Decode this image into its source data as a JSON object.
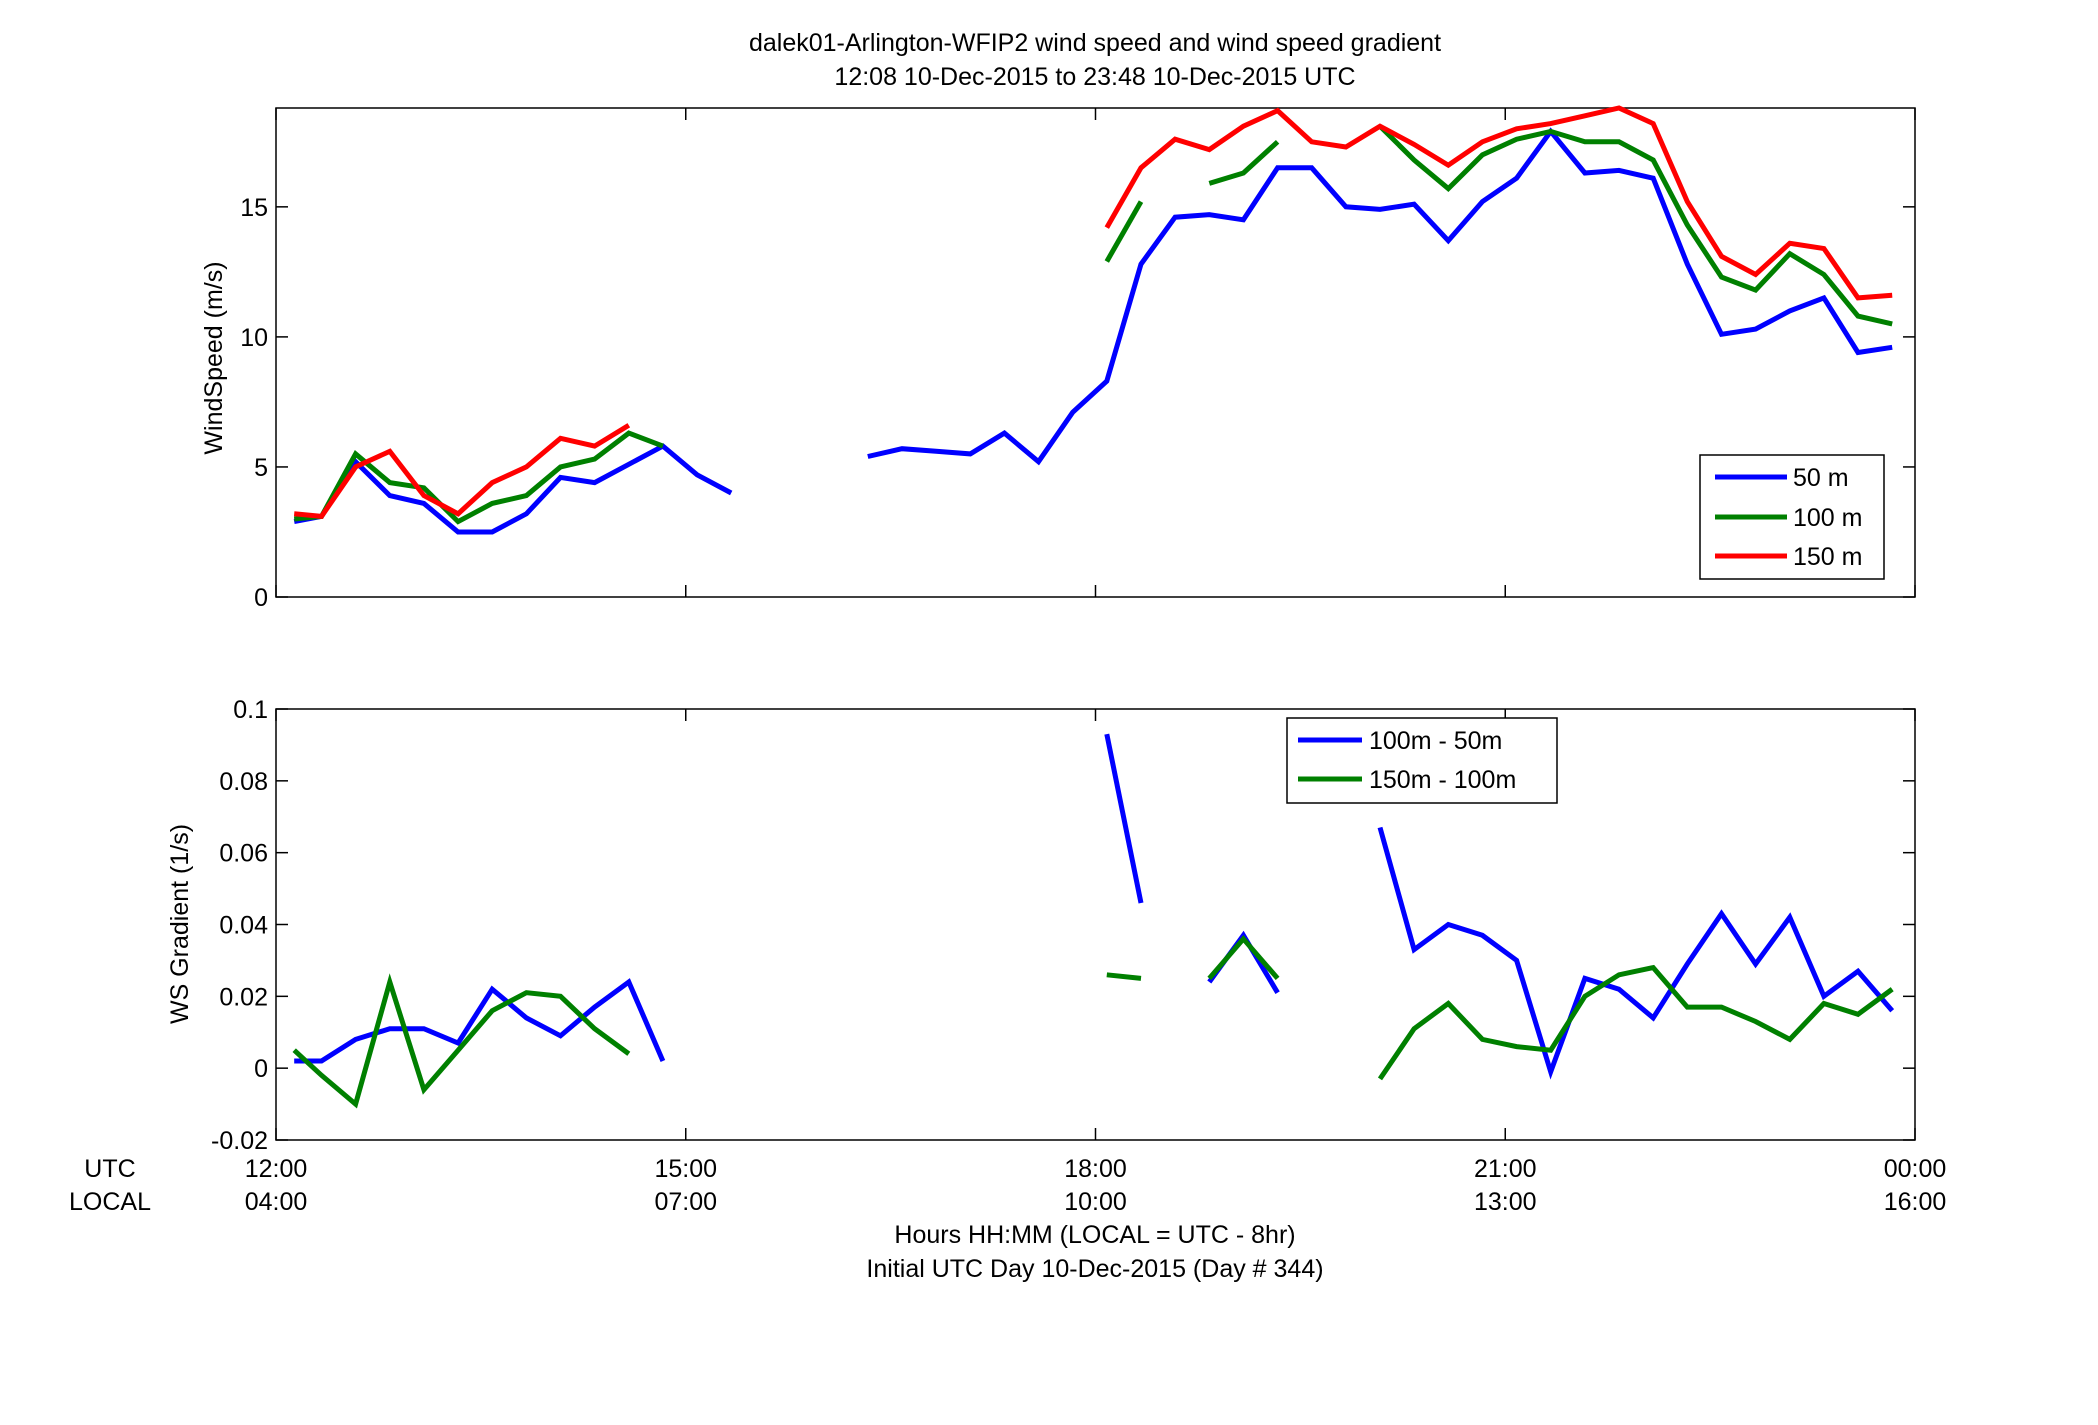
{
  "title_line1": "dalek01-Arlington-WFIP2  wind speed and wind speed gradient",
  "title_line2": "12:08 10-Dec-2015 to 23:48 10-Dec-2015  UTC",
  "xlabel_line1": "Hours HH:MM  (LOCAL = UTC - 8hr)",
  "xlabel_line2": "Initial UTC Day 10-Dec-2015 (Day # 344)",
  "row_label_utc": "UTC",
  "row_label_local": "LOCAL",
  "x_ticks_utc": [
    "12:00",
    "15:00",
    "18:00",
    "21:00",
    "00:00"
  ],
  "x_ticks_local": [
    "04:00",
    "07:00",
    "10:00",
    "13:00",
    "16:00"
  ],
  "colors": {
    "blue": "#0000ff",
    "green": "#008000",
    "red": "#ff0000"
  },
  "chart_data": [
    {
      "type": "line",
      "ylabel": "WindSpeed (m/s)",
      "xlim": [
        12,
        24
      ],
      "ylim": [
        0,
        18.8
      ],
      "y_ticks": [
        "0",
        "5",
        "10",
        "15"
      ],
      "grid": false,
      "legend_position": "lower-right",
      "x": [
        12.133,
        12.333,
        12.583,
        12.833,
        13.083,
        13.333,
        13.583,
        13.833,
        14.083,
        14.333,
        14.583,
        14.833,
        15.083,
        15.333,
        15.583,
        15.833,
        16.083,
        16.333,
        16.583,
        16.833,
        17.083,
        17.333,
        17.583,
        17.833,
        18.083,
        18.333,
        18.583,
        18.833,
        19.083,
        19.333,
        19.583,
        19.833,
        20.083,
        20.333,
        20.583,
        20.833,
        21.083,
        21.333,
        21.583,
        21.833,
        22.083,
        22.333,
        22.583,
        22.833,
        23.083,
        23.333,
        23.583,
        23.833
      ],
      "series": [
        {
          "name": "50 m",
          "color": "#0000ff",
          "values": [
            2.9,
            3.1,
            5.2,
            3.9,
            3.6,
            2.5,
            2.5,
            3.2,
            4.6,
            4.4,
            5.1,
            5.8,
            4.7,
            4.0,
            null,
            null,
            null,
            5.4,
            5.7,
            5.6,
            5.5,
            6.3,
            5.2,
            7.1,
            8.3,
            12.8,
            14.6,
            14.7,
            14.5,
            16.5,
            16.5,
            15.0,
            14.9,
            15.1,
            13.7,
            15.2,
            16.1,
            17.9,
            16.3,
            16.4,
            16.1,
            12.8,
            10.1,
            10.3,
            11.0,
            11.5,
            9.4,
            9.6
          ]
        },
        {
          "name": "100 m",
          "color": "#008000",
          "values": [
            3.0,
            3.1,
            5.5,
            4.4,
            4.2,
            2.9,
            3.6,
            3.9,
            5.0,
            5.3,
            6.3,
            5.8,
            null,
            null,
            null,
            null,
            null,
            null,
            null,
            null,
            null,
            null,
            null,
            null,
            12.9,
            15.2,
            null,
            15.9,
            16.3,
            17.5,
            null,
            null,
            18.1,
            16.8,
            15.7,
            17.0,
            17.6,
            17.9,
            17.5,
            17.5,
            16.8,
            14.3,
            12.3,
            11.8,
            13.2,
            12.4,
            10.8,
            10.5
          ]
        },
        {
          "name": "150 m",
          "color": "#ff0000",
          "values": [
            3.2,
            3.1,
            5.0,
            5.6,
            3.9,
            3.2,
            4.4,
            5.0,
            6.1,
            5.8,
            6.6,
            null,
            null,
            null,
            null,
            null,
            null,
            null,
            null,
            null,
            null,
            null,
            null,
            null,
            14.2,
            16.5,
            17.6,
            17.2,
            18.1,
            18.7,
            17.5,
            17.3,
            18.1,
            17.4,
            16.6,
            17.5,
            18.0,
            18.2,
            18.5,
            18.8,
            18.2,
            15.2,
            13.1,
            12.4,
            13.6,
            13.4,
            11.5,
            11.6
          ]
        }
      ]
    },
    {
      "type": "line",
      "ylabel": "WS Gradient (1/s)",
      "xlim": [
        12,
        24
      ],
      "ylim": [
        -0.02,
        0.1
      ],
      "y_ticks": [
        "-0.02",
        "0",
        "0.02",
        "0.04",
        "0.06",
        "0.08",
        "0.1"
      ],
      "grid": false,
      "legend_position": "top-center",
      "x": [
        12.133,
        12.333,
        12.583,
        12.833,
        13.083,
        13.333,
        13.583,
        13.833,
        14.083,
        14.333,
        14.583,
        14.833,
        15.083,
        15.333,
        15.583,
        15.833,
        16.083,
        16.333,
        16.583,
        16.833,
        17.083,
        17.333,
        17.583,
        17.833,
        18.083,
        18.333,
        18.583,
        18.833,
        19.083,
        19.333,
        19.583,
        19.833,
        20.083,
        20.333,
        20.583,
        20.833,
        21.083,
        21.333,
        21.583,
        21.833,
        22.083,
        22.333,
        22.583,
        22.833,
        23.083,
        23.333,
        23.583,
        23.833
      ],
      "series": [
        {
          "name": "100m - 50m",
          "color": "#0000ff",
          "values": [
            0.002,
            0.002,
            0.008,
            0.011,
            0.011,
            0.007,
            0.022,
            0.014,
            0.009,
            0.017,
            0.024,
            0.002,
            null,
            null,
            null,
            null,
            null,
            null,
            null,
            null,
            null,
            null,
            null,
            null,
            0.093,
            0.046,
            null,
            0.024,
            0.037,
            0.021,
            null,
            null,
            0.067,
            0.033,
            0.04,
            0.037,
            0.03,
            -0.001,
            0.025,
            0.022,
            0.014,
            0.029,
            0.043,
            0.029,
            0.042,
            0.02,
            0.027,
            0.016
          ]
        },
        {
          "name": "150m - 100m",
          "color": "#008000",
          "values": [
            0.005,
            -0.002,
            -0.01,
            0.024,
            -0.006,
            0.005,
            0.016,
            0.021,
            0.02,
            0.011,
            0.004,
            null,
            null,
            null,
            null,
            null,
            null,
            null,
            null,
            null,
            null,
            null,
            null,
            null,
            0.026,
            0.025,
            null,
            0.025,
            0.036,
            0.025,
            null,
            null,
            -0.003,
            0.011,
            0.018,
            0.008,
            0.006,
            0.005,
            0.02,
            0.026,
            0.028,
            0.017,
            0.017,
            0.013,
            0.008,
            0.018,
            0.015,
            0.022
          ]
        }
      ]
    }
  ]
}
